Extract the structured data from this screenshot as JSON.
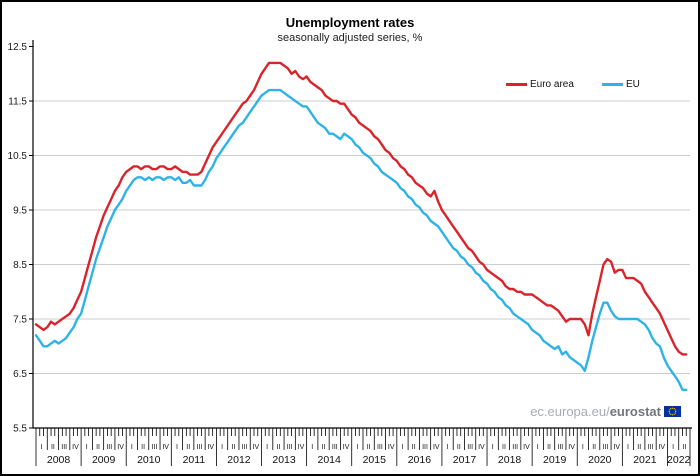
{
  "chart_data": {
    "type": "line",
    "title": "Unemployment rates",
    "subtitle": "seasonally adjusted series, %",
    "frequency": "monthly",
    "x_start": "2008-01",
    "x_end": "2022-06",
    "ylim": [
      5.5,
      12.5
    ],
    "grid": "horizontal",
    "legend_position": "top-right",
    "y_ticks": [
      "12.5",
      "11.5",
      "10.5",
      "9.5",
      "8.5",
      "7.5",
      "6.5",
      "5.5"
    ],
    "years": [
      "2008",
      "2009",
      "2010",
      "2011",
      "2012",
      "2013",
      "2014",
      "2015",
      "2016",
      "2017",
      "2018",
      "2019",
      "2020",
      "2021",
      "2022"
    ],
    "quarter_labels": [
      "I",
      "II",
      "III",
      "IV"
    ],
    "series": [
      {
        "name": "Euro area",
        "color": "#d9242b",
        "values": [
          7.4,
          7.35,
          7.3,
          7.35,
          7.45,
          7.4,
          7.45,
          7.5,
          7.55,
          7.6,
          7.7,
          7.85,
          8.0,
          8.25,
          8.5,
          8.75,
          9.0,
          9.2,
          9.4,
          9.55,
          9.7,
          9.85,
          9.95,
          10.1,
          10.2,
          10.25,
          10.3,
          10.3,
          10.25,
          10.3,
          10.3,
          10.25,
          10.25,
          10.3,
          10.3,
          10.25,
          10.25,
          10.3,
          10.25,
          10.2,
          10.2,
          10.15,
          10.15,
          10.15,
          10.2,
          10.35,
          10.5,
          10.65,
          10.75,
          10.85,
          10.95,
          11.05,
          11.15,
          11.25,
          11.35,
          11.45,
          11.5,
          11.6,
          11.7,
          11.85,
          12.0,
          12.1,
          12.2,
          12.2,
          12.2,
          12.2,
          12.15,
          12.1,
          12.0,
          12.05,
          11.95,
          11.9,
          11.95,
          11.85,
          11.8,
          11.75,
          11.7,
          11.6,
          11.55,
          11.5,
          11.5,
          11.45,
          11.45,
          11.35,
          11.25,
          11.2,
          11.1,
          11.05,
          11.0,
          10.95,
          10.85,
          10.8,
          10.7,
          10.6,
          10.55,
          10.45,
          10.4,
          10.3,
          10.25,
          10.15,
          10.1,
          10.0,
          9.95,
          9.9,
          9.8,
          9.75,
          9.85,
          9.65,
          9.5,
          9.4,
          9.3,
          9.2,
          9.1,
          9.0,
          8.9,
          8.8,
          8.75,
          8.65,
          8.55,
          8.5,
          8.4,
          8.35,
          8.3,
          8.25,
          8.2,
          8.1,
          8.05,
          8.05,
          8.0,
          8.0,
          7.95,
          7.95,
          7.95,
          7.9,
          7.85,
          7.8,
          7.75,
          7.75,
          7.7,
          7.65,
          7.55,
          7.45,
          7.5,
          7.5,
          7.5,
          7.5,
          7.4,
          7.2,
          7.6,
          7.9,
          8.2,
          8.5,
          8.6,
          8.55,
          8.35,
          8.4,
          8.4,
          8.25,
          8.25,
          8.25,
          8.2,
          8.15,
          8.0,
          7.9,
          7.8,
          7.7,
          7.6,
          7.45,
          7.3,
          7.15,
          7.0,
          6.9,
          6.85,
          6.85
        ]
      },
      {
        "name": "EU",
        "color": "#2fb3e6",
        "values": [
          7.2,
          7.1,
          7.0,
          7.0,
          7.05,
          7.1,
          7.05,
          7.1,
          7.15,
          7.25,
          7.35,
          7.5,
          7.6,
          7.85,
          8.1,
          8.35,
          8.6,
          8.8,
          9.0,
          9.2,
          9.35,
          9.5,
          9.6,
          9.7,
          9.85,
          9.95,
          10.05,
          10.1,
          10.1,
          10.05,
          10.1,
          10.05,
          10.1,
          10.1,
          10.05,
          10.1,
          10.1,
          10.05,
          10.1,
          10.0,
          10.0,
          10.05,
          9.95,
          9.95,
          9.95,
          10.05,
          10.2,
          10.3,
          10.45,
          10.55,
          10.65,
          10.75,
          10.85,
          10.95,
          11.05,
          11.1,
          11.2,
          11.3,
          11.4,
          11.5,
          11.6,
          11.65,
          11.7,
          11.7,
          11.7,
          11.7,
          11.65,
          11.6,
          11.55,
          11.5,
          11.45,
          11.4,
          11.4,
          11.3,
          11.2,
          11.1,
          11.05,
          11.0,
          10.9,
          10.9,
          10.85,
          10.8,
          10.9,
          10.85,
          10.8,
          10.7,
          10.65,
          10.55,
          10.5,
          10.45,
          10.35,
          10.3,
          10.2,
          10.15,
          10.1,
          10.05,
          10.0,
          9.9,
          9.85,
          9.75,
          9.7,
          9.6,
          9.55,
          9.45,
          9.4,
          9.3,
          9.25,
          9.2,
          9.1,
          9.0,
          8.9,
          8.8,
          8.75,
          8.65,
          8.6,
          8.5,
          8.45,
          8.35,
          8.3,
          8.2,
          8.15,
          8.05,
          8.0,
          7.9,
          7.85,
          7.75,
          7.7,
          7.6,
          7.55,
          7.5,
          7.45,
          7.4,
          7.3,
          7.25,
          7.2,
          7.1,
          7.05,
          7.0,
          6.95,
          7.0,
          6.85,
          6.9,
          6.8,
          6.75,
          6.7,
          6.65,
          6.55,
          6.8,
          7.1,
          7.35,
          7.6,
          7.8,
          7.8,
          7.65,
          7.55,
          7.5,
          7.5,
          7.5,
          7.5,
          7.5,
          7.5,
          7.45,
          7.4,
          7.3,
          7.15,
          7.05,
          7.0,
          6.8,
          6.65,
          6.55,
          6.45,
          6.35,
          6.2,
          6.2
        ]
      }
    ],
    "axis_colors": {
      "axis": "#000000",
      "gridline": "#cdcdcd",
      "tick_label": "#1a1a1a"
    },
    "watermark": {
      "prefix": "ec.europa.eu/",
      "brand": "eurostat",
      "flag_blue": "#003399",
      "flag_star": "#ffcc00"
    }
  }
}
